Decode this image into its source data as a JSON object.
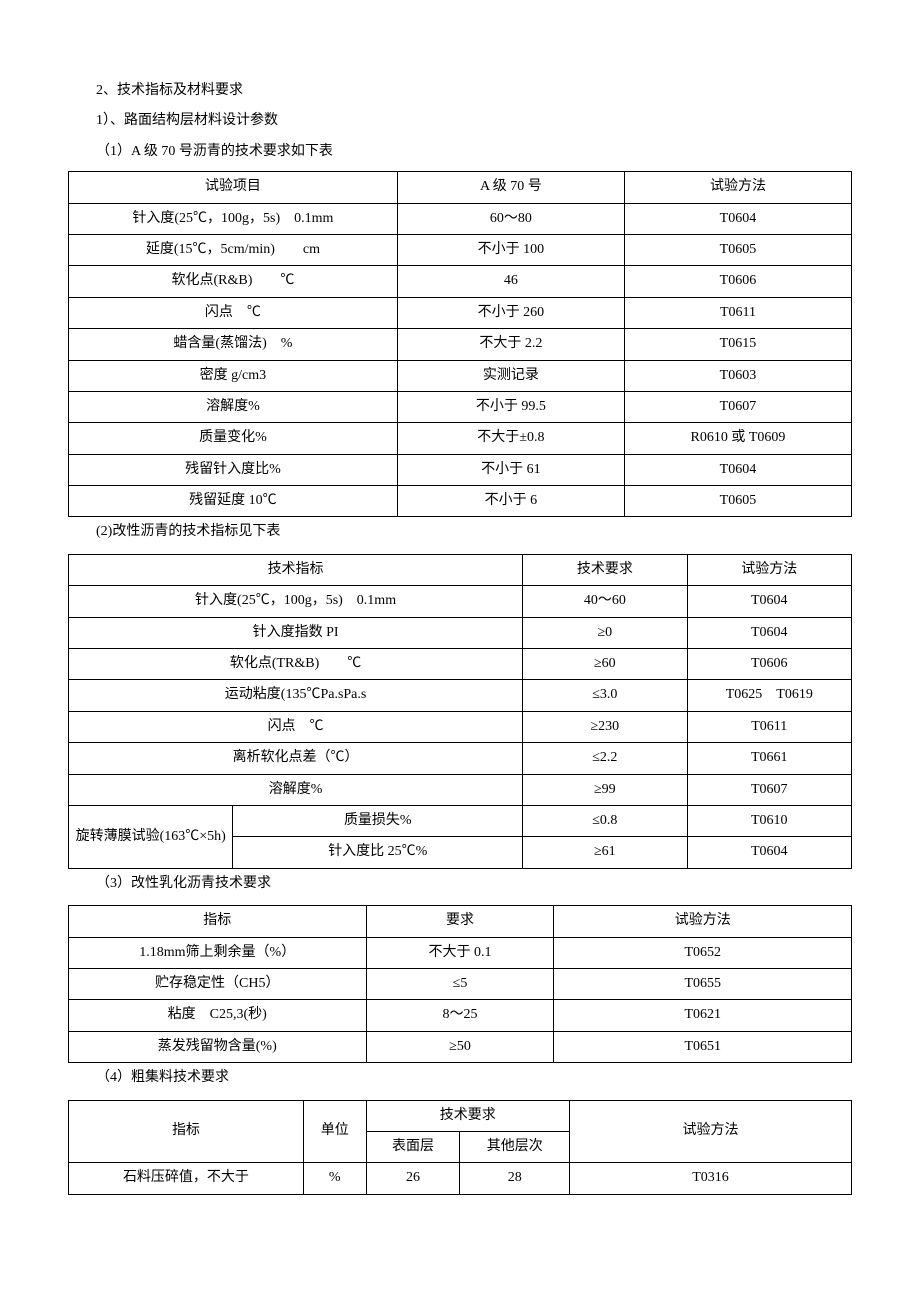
{
  "headings": {
    "h1": "2、技术指标及材料要求",
    "h2": "1）、路面结构层材料设计参数",
    "h3": "（1）A 级 70 号沥青的技术要求如下表",
    "h4": "(2)改性沥青的技术指标见下表",
    "h5": "（3）改性乳化沥青技术要求",
    "h6": "（4）粗集料技术要求"
  },
  "table1": {
    "header": [
      "试验项目",
      "A 级 70 号",
      "试验方法"
    ],
    "rows": [
      [
        "针入度(25℃，100g，5s)　0.1mm",
        "60～80",
        "T0604"
      ],
      [
        "延度(15℃，5cm/min)　　cm",
        "不小于 100",
        "T0605"
      ],
      [
        "软化点(R&B)　　℃",
        "46",
        "T0606"
      ],
      [
        "闪点　℃",
        "不小于 260",
        "T0611"
      ],
      [
        "蜡含量(蒸馏法)　%",
        "不大于 2.2",
        "T0615"
      ],
      [
        "密度 g/cm3",
        "实测记录",
        "T0603"
      ],
      [
        "溶解度%",
        "不小于 99.5",
        "T0607"
      ],
      [
        "质量变化%",
        "不大于±0.8",
        "R0610 或 T0609"
      ],
      [
        "残留针入度比%",
        "不小于 61",
        "T0604"
      ],
      [
        "残留延度 10℃",
        "不小于 6",
        "T0605"
      ]
    ]
  },
  "table2": {
    "header": [
      "技术指标",
      "技术要求",
      "试验方法"
    ],
    "rows_simple": [
      [
        "针入度(25℃，100g，5s)　0.1mm",
        "40～60",
        "T0604"
      ],
      [
        "针入度指数 PI",
        "≥0",
        "T0604"
      ],
      [
        "软化点(TR&B)　　℃",
        "≥60",
        "T0606"
      ],
      [
        "运动粘度(135℃Pa.sPa.s",
        "≤3.0",
        "T0625　T0619"
      ],
      [
        "闪点　℃",
        "≥230",
        "T0611"
      ],
      [
        "离析软化点差（℃）",
        "≤2.2",
        "T0661"
      ],
      [
        "溶解度%",
        "≥99",
        "T0607"
      ]
    ],
    "group_label": "旋转薄膜试验(163℃×5h)",
    "rows_grouped": [
      [
        "质量损失%",
        "≤0.8",
        "T0610"
      ],
      [
        "针入度比 25℃%",
        "≥61",
        "T0604"
      ]
    ]
  },
  "table3": {
    "header": [
      "指标",
      "要求",
      "试验方法"
    ],
    "rows": [
      [
        "1.18mm筛上剩余量（%）",
        "不大于 0.1",
        "T0652"
      ],
      [
        "贮存稳定性（CH5）",
        "≤5",
        "T0655"
      ],
      [
        "粘度　C25,3(秒)",
        "8～25",
        "T0621"
      ],
      [
        "蒸发残留物含量(%)",
        "≥50",
        "T0651"
      ]
    ]
  },
  "table4": {
    "header": {
      "c1": "指标",
      "c2": "单位",
      "c34": "技术要求",
      "c3": "表面层",
      "c4": "其他层次",
      "c5": "试验方法"
    },
    "rows": [
      [
        "石料压碎值，不大于",
        "%",
        "26",
        "28",
        "T0316"
      ]
    ]
  }
}
